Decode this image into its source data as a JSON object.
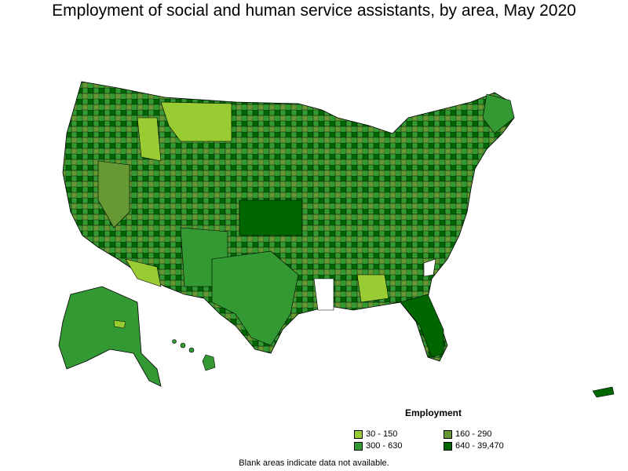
{
  "title": "Employment of social and human service assistants, by area, May 2020",
  "legend": {
    "title": "Employment",
    "items": [
      {
        "label": "30 - 150",
        "color": "#99cc33"
      },
      {
        "label": "160 - 290",
        "color": "#669933"
      },
      {
        "label": "300 - 630",
        "color": "#339933"
      },
      {
        "label": "640 - 39,470",
        "color": "#006600"
      }
    ]
  },
  "footnote": "Blank areas indicate data not available.",
  "colors": {
    "border": "#000000",
    "blank": "#ffffff"
  }
}
